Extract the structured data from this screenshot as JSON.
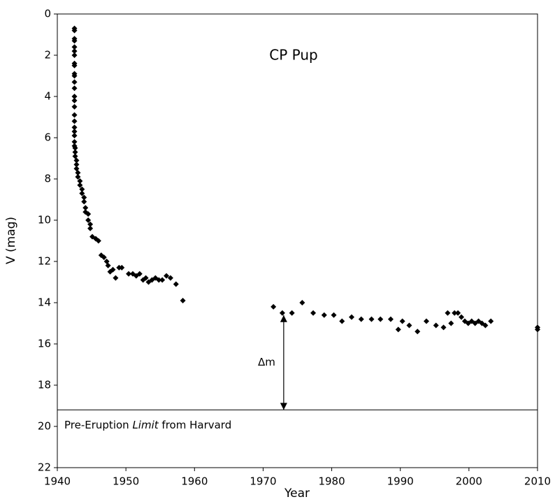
{
  "chart_data": {
    "type": "scatter",
    "title": "CP Pup",
    "xlabel": "Year",
    "ylabel": "V (mag)",
    "xlim": [
      1940,
      2010
    ],
    "xticks": [
      1940,
      1950,
      1960,
      1970,
      1980,
      1990,
      2000,
      2010
    ],
    "ylim": [
      0,
      22
    ],
    "yticks": [
      0,
      2,
      4,
      6,
      8,
      10,
      12,
      14,
      16,
      18,
      20,
      22
    ],
    "y_inverted": true,
    "color": "#000000",
    "x": [
      1942.5,
      1942.5,
      1942.5,
      1942.5,
      1942.5,
      1942.5,
      1942.5,
      1942.5,
      1942.5,
      1942.5,
      1942.5,
      1942.5,
      1942.5,
      1942.5,
      1942.5,
      1942.5,
      1942.5,
      1942.5,
      1942.5,
      1942.5,
      1942.5,
      1942.5,
      1942.5,
      1942.6,
      1942.6,
      1942.6,
      1942.8,
      1942.8,
      1942.8,
      1943.0,
      1943.0,
      1943.3,
      1943.3,
      1943.6,
      1943.6,
      1943.9,
      1943.9,
      1944.1,
      1944.1,
      1944.5,
      1944.5,
      1944.8,
      1944.8,
      1945.1,
      1945.6,
      1946.0,
      1946.4,
      1946.8,
      1947.2,
      1947.4,
      1947.7,
      1948.1,
      1948.5,
      1949.0,
      1949.4,
      1950.4,
      1951.0,
      1951.5,
      1952.0,
      1952.5,
      1952.9,
      1953.3,
      1953.8,
      1954.3,
      1954.8,
      1955.3,
      1955.9,
      1956.5,
      1957.3,
      1958.3,
      1971.5,
      1972.8,
      1974.2,
      1975.7,
      1977.3,
      1978.9,
      1980.3,
      1981.5,
      1982.9,
      1984.3,
      1985.8,
      1987.1,
      1988.6,
      1989.7,
      1990.3,
      1991.3,
      1992.5,
      1993.8,
      1995.2,
      1996.3,
      1996.9,
      1997.4,
      1997.9,
      1998.4,
      1998.9,
      1999.4,
      1999.9,
      2000.4,
      2000.9,
      2001.4,
      2001.9,
      2002.4,
      2003.2,
      2010.0,
      2010.0
    ],
    "values": [
      0.7,
      0.8,
      1.2,
      1.3,
      1.6,
      1.8,
      2.0,
      2.4,
      2.5,
      2.9,
      3.0,
      3.3,
      3.6,
      4.0,
      4.2,
      4.5,
      4.9,
      5.2,
      5.5,
      5.7,
      5.9,
      6.2,
      6.4,
      6.5,
      6.7,
      6.9,
      7.1,
      7.3,
      7.5,
      7.7,
      7.9,
      8.1,
      8.3,
      8.5,
      8.7,
      8.9,
      9.1,
      9.4,
      9.6,
      9.7,
      10.0,
      10.2,
      10.4,
      10.8,
      10.9,
      11.0,
      11.7,
      11.8,
      12.0,
      12.2,
      12.5,
      12.4,
      12.8,
      12.3,
      12.3,
      12.6,
      12.6,
      12.7,
      12.6,
      12.9,
      12.8,
      13.0,
      12.9,
      12.8,
      12.9,
      12.9,
      12.7,
      12.8,
      13.1,
      13.9,
      14.2,
      14.5,
      14.5,
      14.0,
      14.5,
      14.6,
      14.6,
      14.9,
      14.7,
      14.8,
      14.8,
      14.8,
      14.8,
      15.3,
      14.9,
      15.1,
      15.4,
      14.9,
      15.1,
      15.2,
      14.5,
      15.0,
      14.5,
      14.5,
      14.7,
      14.9,
      15.0,
      14.9,
      15.0,
      14.9,
      15.0,
      15.1,
      14.9,
      15.2,
      15.3
    ],
    "limit_line": {
      "value": 19.2,
      "label_parts": [
        "Pre-Eruption",
        "Limit",
        "from Harvard"
      ]
    },
    "arrow": {
      "x": 1973,
      "from": 14.6,
      "to": 19.2,
      "label": "Δm"
    }
  }
}
